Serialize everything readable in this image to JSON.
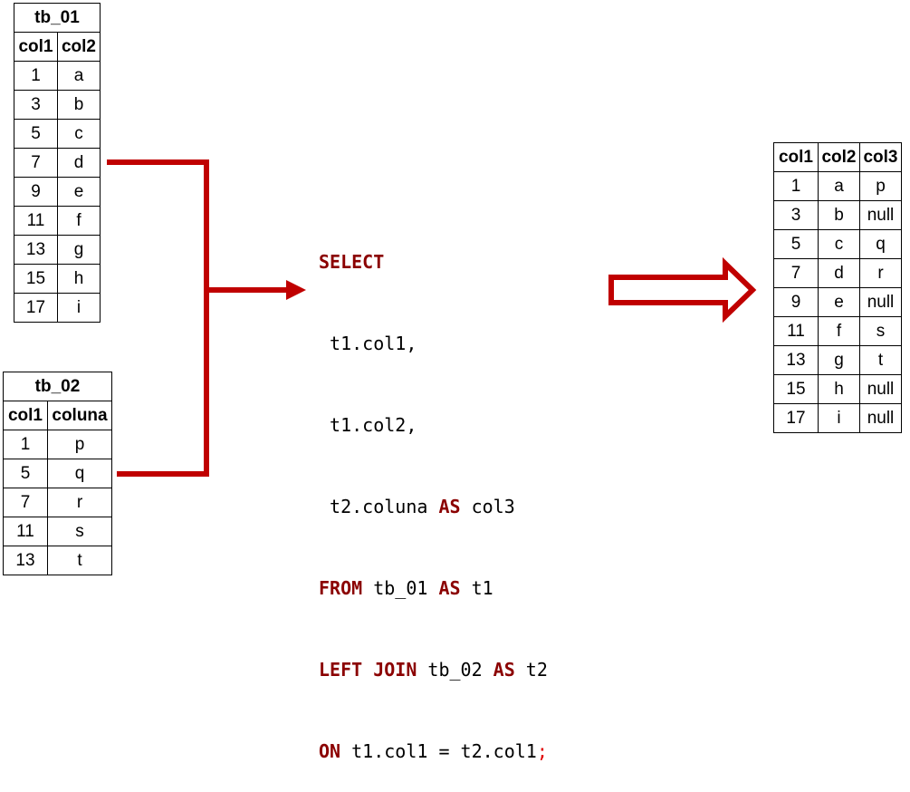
{
  "tb_01": {
    "title": "tb_01",
    "headers": [
      "col1",
      "col2"
    ],
    "rows": [
      [
        "1",
        "a"
      ],
      [
        "3",
        "b"
      ],
      [
        "5",
        "c"
      ],
      [
        "7",
        "d"
      ],
      [
        "9",
        "e"
      ],
      [
        "11",
        "f"
      ],
      [
        "13",
        "g"
      ],
      [
        "15",
        "h"
      ],
      [
        "17",
        "i"
      ]
    ]
  },
  "tb_02": {
    "title": "tb_02",
    "headers": [
      "col1",
      "coluna"
    ],
    "rows": [
      [
        "1",
        "p"
      ],
      [
        "5",
        "q"
      ],
      [
        "7",
        "r"
      ],
      [
        "11",
        "s"
      ],
      [
        "13",
        "t"
      ]
    ]
  },
  "query": {
    "select": "SELECT",
    "col_1": " t1.col1,",
    "col_2": " t1.col2,",
    "col_3": " t2.coluna ",
    "as1": "AS",
    "alias3": " col3",
    "from": "FROM",
    "from_tbl": " tb_01 ",
    "as2": "AS",
    "alias1": " t1",
    "join": "LEFT JOIN",
    "join_tbl": " tb_02 ",
    "as3": "AS",
    "alias2": " t2",
    "on": "ON",
    "on_cond": " t1.col1 = t2.col1",
    "semicolon": ";"
  },
  "result": {
    "headers": [
      "col1",
      "col2",
      "col3"
    ],
    "rows": [
      [
        "1",
        "a",
        "p"
      ],
      [
        "3",
        "b",
        "null"
      ],
      [
        "5",
        "c",
        "q"
      ],
      [
        "7",
        "d",
        "r"
      ],
      [
        "9",
        "e",
        "null"
      ],
      [
        "11",
        "f",
        "s"
      ],
      [
        "13",
        "g",
        "t"
      ],
      [
        "15",
        "h",
        "null"
      ],
      [
        "17",
        "i",
        "null"
      ]
    ]
  },
  "colors": {
    "arrow": "#c00000",
    "keyword": "#8b0000",
    "semicolon": "#e00000"
  }
}
